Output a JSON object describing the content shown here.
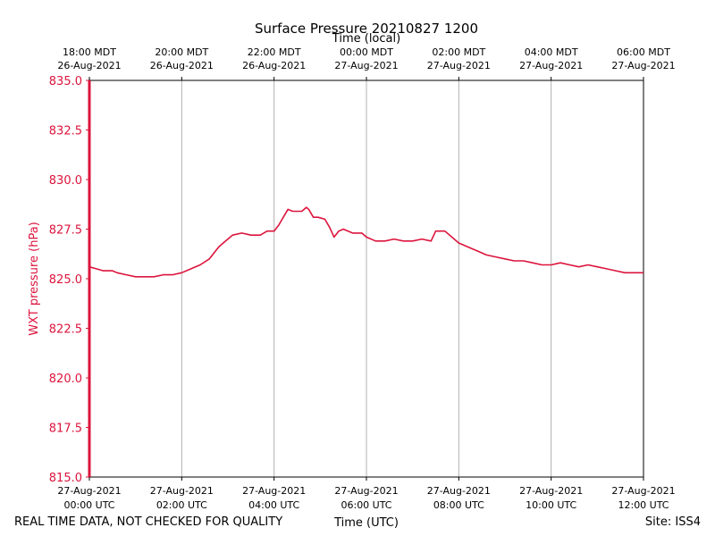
{
  "chart_data": {
    "type": "line",
    "title": "Surface Pressure 20210827 1200",
    "xlabel_bottom": "Time (UTC)",
    "xlabel_top": "Time (local)",
    "ylabel": "WXT pressure (hPa)",
    "ylim": [
      815.0,
      835.0
    ],
    "xlim_hours_utc": [
      0,
      12
    ],
    "yticks": [
      "815.0",
      "817.5",
      "820.0",
      "822.5",
      "825.0",
      "827.5",
      "830.0",
      "832.5",
      "835.0"
    ],
    "xticks_bottom": [
      {
        "date": "27-Aug-2021",
        "time": "00:00 UTC"
      },
      {
        "date": "27-Aug-2021",
        "time": "02:00 UTC"
      },
      {
        "date": "27-Aug-2021",
        "time": "04:00 UTC"
      },
      {
        "date": "27-Aug-2021",
        "time": "06:00 UTC"
      },
      {
        "date": "27-Aug-2021",
        "time": "08:00 UTC"
      },
      {
        "date": "27-Aug-2021",
        "time": "10:00 UTC"
      },
      {
        "date": "27-Aug-2021",
        "time": "12:00 UTC"
      }
    ],
    "xticks_top": [
      {
        "time": "18:00 MDT",
        "date": "26-Aug-2021"
      },
      {
        "time": "20:00 MDT",
        "date": "26-Aug-2021"
      },
      {
        "time": "22:00 MDT",
        "date": "26-Aug-2021"
      },
      {
        "time": "00:00 MDT",
        "date": "27-Aug-2021"
      },
      {
        "time": "02:00 MDT",
        "date": "27-Aug-2021"
      },
      {
        "time": "04:00 MDT",
        "date": "27-Aug-2021"
      },
      {
        "time": "06:00 MDT",
        "date": "27-Aug-2021"
      }
    ],
    "series": [
      {
        "name": "WXT pressure",
        "color": "#dc143c",
        "x_hours": [
          0,
          0.15,
          0.3,
          0.4,
          0.5,
          0.6,
          0.8,
          1.0,
          1.2,
          1.4,
          1.6,
          1.8,
          2.0,
          2.2,
          2.4,
          2.6,
          2.8,
          2.9,
          3.0,
          3.1,
          3.3,
          3.5,
          3.7,
          3.85,
          4.0,
          4.1,
          4.2,
          4.3,
          4.4,
          4.6,
          4.7,
          4.75,
          4.85,
          4.95,
          5.1,
          5.2,
          5.3,
          5.4,
          5.5,
          5.7,
          5.9,
          6.0,
          6.2,
          6.4,
          6.6,
          6.8,
          7.0,
          7.2,
          7.4,
          7.5,
          7.6,
          7.7,
          7.9,
          8.0,
          8.2,
          8.4,
          8.6,
          8.8,
          9.0,
          9.2,
          9.4,
          9.6,
          9.8,
          10.0,
          10.2,
          10.4,
          10.6,
          10.8,
          11.0,
          11.2,
          11.4,
          11.6,
          11.8,
          12.0
        ],
        "y_hpa": [
          825.6,
          825.5,
          825.4,
          825.4,
          825.4,
          825.3,
          825.2,
          825.1,
          825.1,
          825.1,
          825.2,
          825.2,
          825.3,
          825.5,
          825.7,
          826.0,
          826.6,
          826.8,
          827.0,
          827.2,
          827.3,
          827.2,
          827.2,
          827.4,
          827.4,
          827.7,
          828.1,
          828.5,
          828.4,
          828.4,
          828.6,
          828.5,
          828.1,
          828.1,
          828.0,
          827.6,
          827.1,
          827.4,
          827.5,
          827.3,
          827.3,
          827.1,
          826.9,
          826.9,
          827.0,
          826.9,
          826.9,
          827.0,
          826.9,
          827.4,
          827.4,
          827.4,
          827.0,
          826.8,
          826.6,
          826.4,
          826.2,
          826.1,
          826.0,
          825.9,
          825.9,
          825.8,
          825.7,
          825.7,
          825.8,
          825.7,
          825.6,
          825.7,
          825.6,
          825.5,
          825.4,
          825.3,
          825.3,
          825.3
        ]
      }
    ]
  },
  "footer": {
    "left": "REAL TIME DATA, NOT CHECKED FOR QUALITY",
    "right": "Site: ISS4"
  }
}
